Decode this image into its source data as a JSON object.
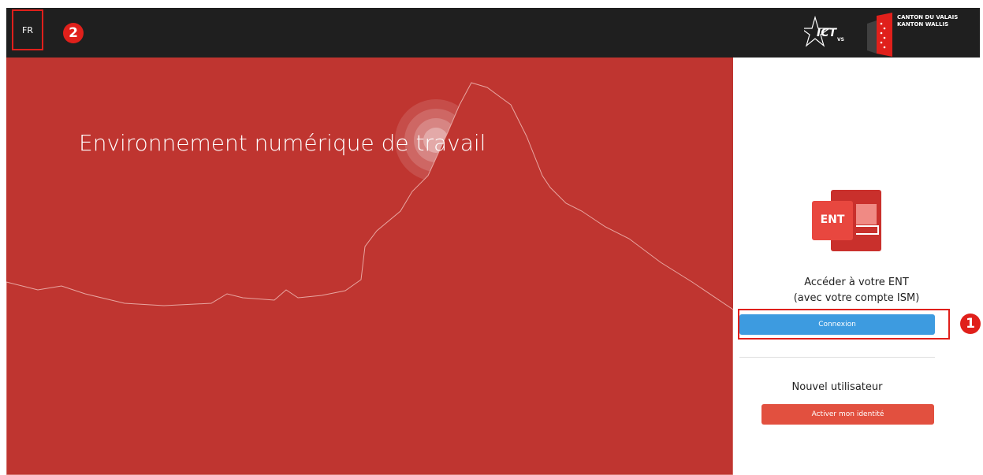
{
  "header": {
    "language": "FR",
    "logo_ict": "ICT",
    "logo_ict_sub": "VS",
    "canton_fr": "CANTON DU VALAIS",
    "canton_de": "KANTON WALLIS"
  },
  "annotations": {
    "marker_language": "2",
    "marker_login": "1"
  },
  "hero": {
    "title": "Environnement numérique de travail"
  },
  "login": {
    "app_icon": "ENT",
    "heading": "Accéder à votre ENT",
    "subheading": "(avec votre compte ISM)",
    "button": "Connexion"
  },
  "new_user": {
    "heading": "Nouvel utilisateur",
    "button": "Activer mon identité"
  }
}
